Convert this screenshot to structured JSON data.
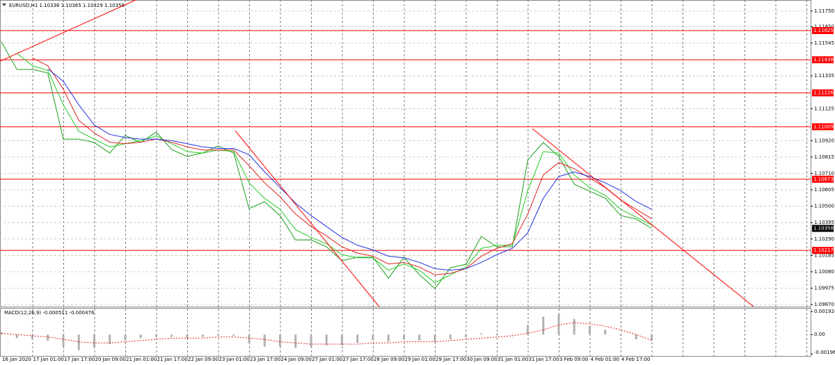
{
  "chart_data": {
    "type": "line",
    "title": "EURUSD,H1  1.10336 1.10365 1.10329 1.10358",
    "categories": [
      "16 Jan 2020",
      null,
      "17 Jan 01:00",
      null,
      "17 Jan 17:00",
      null,
      "20 Jan 09:00",
      null,
      "21 Jan 01:00",
      null,
      "21 Jan 17:00",
      null,
      "22 Jan 09:00",
      null,
      "23 Jan 01:00",
      null,
      "23 Jan 17:00",
      null,
      "24 Jan 09:00",
      null,
      "27 Jan 01:00",
      null,
      "27 Jan 17:00",
      null,
      "28 Jan 09:00",
      null,
      "29 Jan 01:00",
      null,
      "29 Jan 17:00",
      null,
      "30 Jan 09:00",
      null,
      "31 Jan 01:00",
      null,
      "31 Jan 17:00",
      null,
      "3 Feb 09:00",
      null,
      "4 Feb 01:00",
      null,
      "4 Feb 17:00",
      null,
      null
    ],
    "series": [
      {
        "color": "#1a9e1a",
        "values": [
          1.11554,
          1.11376,
          1.11376,
          1.11354,
          1.1093,
          1.1093,
          1.10908,
          1.10841,
          1.10953,
          1.10908,
          1.10975,
          1.10863,
          1.10819,
          1.10841,
          1.10886,
          1.10841,
          1.10485,
          1.10529,
          1.1044,
          1.10284,
          1.10284,
          1.1024,
          1.10151,
          1.10173,
          1.10173,
          1.10039,
          1.10173,
          1.10062,
          1.09972,
          1.10106,
          1.10128,
          1.10307,
          1.1024,
          1.1024,
          1.10797,
          1.10908,
          1.10819,
          1.10641,
          1.10596,
          1.10552,
          1.1044,
          1.10418,
          1.10358
        ]
      },
      {
        "color": "#22cc22",
        "values": [
          null,
          1.1148,
          1.114,
          1.1137,
          1.1115,
          1.1098,
          1.1093,
          1.1088,
          1.109,
          1.1092,
          1.1095,
          1.109,
          1.1085,
          1.1084,
          1.1086,
          1.1085,
          1.1065,
          1.1055,
          1.1048,
          1.1035,
          1.103,
          1.1026,
          1.1019,
          1.1017,
          1.1017,
          1.1009,
          1.1013,
          1.1009,
          1.1001,
          1.1006,
          1.1011,
          1.1023,
          1.1025,
          1.1025,
          1.106,
          1.1085,
          1.1084,
          1.107,
          1.1062,
          1.1057,
          1.1048,
          1.1043,
          1.1038
        ]
      },
      {
        "color": "#e02020",
        "values": [
          null,
          null,
          1.1145,
          1.114,
          1.1125,
          1.1105,
          1.1097,
          1.1091,
          1.109,
          1.1091,
          1.1093,
          1.1091,
          1.1088,
          1.1086,
          1.1086,
          1.1086,
          1.1076,
          1.1065,
          1.1056,
          1.1045,
          1.1037,
          1.1031,
          1.1024,
          1.102,
          1.1018,
          1.1013,
          1.1014,
          1.1011,
          1.1006,
          1.1007,
          1.101,
          1.1018,
          1.1023,
          1.1026,
          1.1045,
          1.107,
          1.1078,
          1.1074,
          1.1068,
          1.1062,
          1.1054,
          1.1048,
          1.1042
        ]
      },
      {
        "color": "#2030e0",
        "values": [
          null,
          null,
          null,
          1.1138,
          1.113,
          1.1115,
          1.1102,
          1.1096,
          1.1094,
          1.1093,
          1.1093,
          1.1092,
          1.109,
          1.1088,
          1.1087,
          1.1087,
          1.1083,
          1.1072,
          1.1062,
          1.1052,
          1.1044,
          1.1037,
          1.103,
          1.1025,
          1.1022,
          1.1018,
          1.1017,
          1.1014,
          1.101,
          1.1009,
          1.101,
          1.1014,
          1.1019,
          1.1023,
          1.1033,
          1.1055,
          1.1069,
          1.1072,
          1.1069,
          1.1065,
          1.106,
          1.1053,
          1.1048
        ]
      }
    ],
    "ylim": [
      1.09857,
      1.11821
    ],
    "yticks": [
      {
        "value": 1.1175,
        "label": "1.11750"
      },
      {
        "value": 1.1165,
        "label": "1.11650"
      },
      1.11545,
      1.11335,
      1.11125,
      {
        "value": 1.1092,
        "label": "1.10920"
      },
      1.10815,
      {
        "value": 1.1071,
        "label": "1.10710"
      },
      1.10605,
      {
        "value": 1.105,
        "label": "1.10500"
      },
      1.10395,
      {
        "value": 1.1029,
        "label": "1.10290"
      },
      1.10185,
      {
        "value": 1.1008,
        "label": "1.10080"
      },
      1.09975,
      {
        "value": 1.0987,
        "label": "1.09870"
      }
    ],
    "grid": true,
    "levels": [
      1.11625,
      1.11438,
      1.11226,
      1.11009,
      1.10673,
      1.10217
    ],
    "level_color": "#ff0000",
    "current_price": 1.10358,
    "macd": {
      "title": "MACD(12,26,9) -0.000511 -0.000476",
      "histogram": [
        0.0002,
        -0.0003,
        -0.0004,
        -0.0005,
        -0.001,
        -0.0013,
        -0.0011,
        -0.0008,
        -0.0005,
        -0.0003,
        -0.0002,
        -0.0002,
        -0.0003,
        -0.0002,
        -0.0001,
        -0.0001,
        -0.0007,
        -0.001,
        -0.001,
        -0.0011,
        -0.001,
        -0.0009,
        -0.0009,
        -0.0007,
        -0.0005,
        -0.0006,
        -0.0004,
        -0.0005,
        -0.0006,
        -0.0004,
        -0.0002,
        0.0001,
        0.0001,
        0,
        0.0008,
        0.0015,
        0.0017,
        0.0013,
        0.0007,
        0.0004,
        -0.0001,
        -0.0004,
        -0.000511
      ],
      "signal": [
        0.0001,
        0,
        -0.0001,
        -0.0002,
        -0.0004,
        -0.0006,
        -0.0007,
        -0.0007,
        -0.0006,
        -0.0005,
        -0.0004,
        -0.0003,
        -0.0003,
        -0.0003,
        -0.0002,
        -0.0002,
        -0.0003,
        -0.0004,
        -0.0006,
        -0.0007,
        -0.0008,
        -0.0008,
        -0.0008,
        -0.0008,
        -0.0007,
        -0.0007,
        -0.0006,
        -0.0006,
        -0.0006,
        -0.0005,
        -0.0004,
        -0.0003,
        -0.0002,
        -0.0001,
        0.0001,
        0.0004,
        0.0008,
        0.001,
        0.0009,
        0.0007,
        0.0004,
        0,
        -0.000476
      ],
      "histogram_color": "#b0b0b0",
      "signal_color": "#e02020",
      "ylim": [
        -0.00196,
        0.00222
      ],
      "yticks": [
        0.001924,
        {
          "value": 0,
          "label": "0.00"
        },
        -0.00196
      ]
    }
  }
}
